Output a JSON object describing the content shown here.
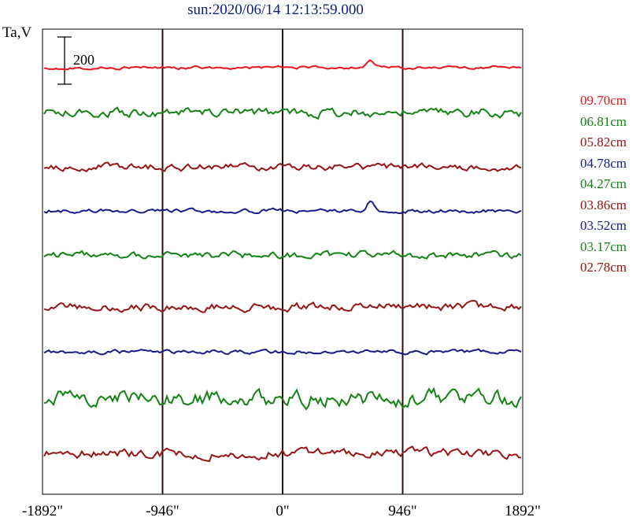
{
  "chart_data": {
    "type": "line",
    "title": "sun:2020/06/14 12:13:59.000",
    "ylabel": "Ta,V",
    "xlabel": "",
    "x_tick_labels": [
      "-1892\"",
      "-946\"",
      "0\"",
      "946\"",
      "1892\""
    ],
    "x_ticks_arcsec": [
      -1892,
      -946,
      0,
      946,
      1892
    ],
    "xlim": [
      -1892,
      1892
    ],
    "vertical_gridlines_arcsec": [
      -946,
      0,
      946
    ],
    "scale_bar": {
      "label": "200",
      "value": 200
    },
    "series": [
      {
        "name": "09.70cm",
        "color": "#e8141e"
      },
      {
        "name": "06.81cm",
        "color": "#148214"
      },
      {
        "name": "05.82cm",
        "color": "#961414"
      },
      {
        "name": "04.78cm",
        "color": "#1a1a8c"
      },
      {
        "name": "04.27cm",
        "color": "#148214"
      },
      {
        "name": "03.86cm",
        "color": "#961414"
      },
      {
        "name": "03.52cm",
        "color": "#1a1a8c"
      },
      {
        "name": "03.17cm",
        "color": "#148214"
      },
      {
        "name": "02.78cm",
        "color": "#961414"
      }
    ]
  }
}
